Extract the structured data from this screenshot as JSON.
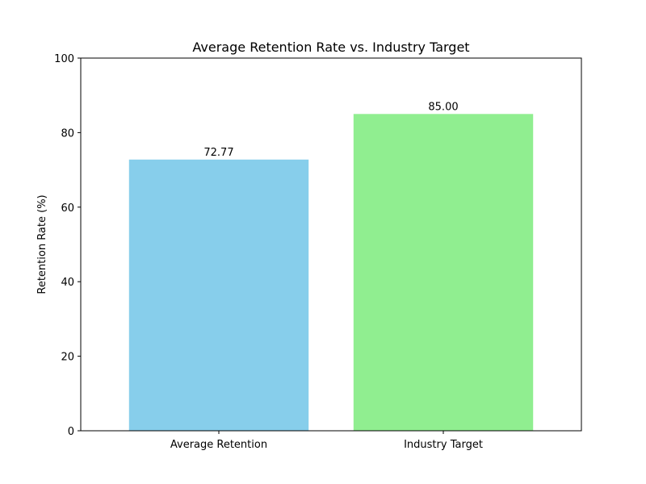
{
  "chart_data": {
    "type": "bar",
    "title": "Average Retention Rate vs. Industry Target",
    "xlabel": "",
    "ylabel": "Retention Rate (%)",
    "categories": [
      "Average Retention",
      "Industry Target"
    ],
    "values": [
      72.77,
      85.0
    ],
    "value_labels": [
      "72.77",
      "85.00"
    ],
    "colors": [
      "#87ceeb",
      "#90ee90"
    ],
    "ylim": [
      0,
      100
    ],
    "yticks": [
      0,
      20,
      40,
      60,
      80,
      100
    ],
    "ytick_labels": [
      "0",
      "20",
      "40",
      "60",
      "80",
      "100"
    ],
    "grid": false,
    "legend": "none"
  }
}
